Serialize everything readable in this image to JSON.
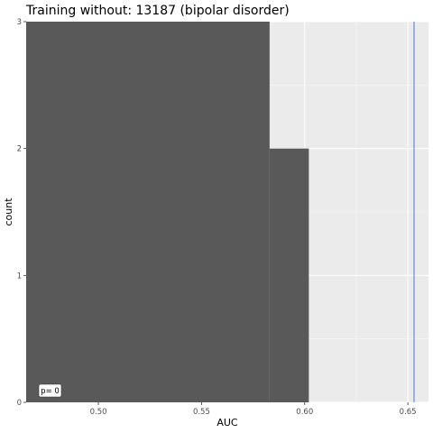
{
  "chart_data": {
    "type": "bar",
    "title": "Training without: 13187 (bipolar disorder)",
    "xlabel": "AUC",
    "ylabel": "count",
    "xlim": [
      0.465,
      0.66
    ],
    "ylim": [
      0,
      3
    ],
    "x_ticks": [
      0.5,
      0.55,
      0.6,
      0.65
    ],
    "x_tick_labels": [
      "0.50",
      "0.55",
      "0.60",
      "0.65"
    ],
    "y_ticks": [
      0,
      1,
      2,
      3
    ],
    "y_tick_labels": [
      "0",
      "1",
      "2",
      "3"
    ],
    "bins": [
      {
        "x0": 0.465,
        "x1": 0.583,
        "count": 3
      },
      {
        "x0": 0.583,
        "x1": 0.602,
        "count": 2
      }
    ],
    "reference_line": {
      "x": 0.653,
      "color": "#4a7bd6"
    },
    "annotation": "p= 0",
    "bar_color": "#595959",
    "panel_background": "#ebebeb",
    "grid": true
  }
}
